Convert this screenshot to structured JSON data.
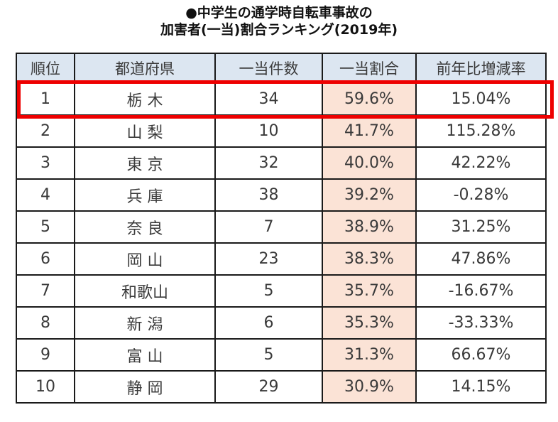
{
  "title": {
    "line1": "●中学生の通学時自転車事故の",
    "line2": "加害者(一当)割合ランキング(2019年)"
  },
  "table": {
    "headers": [
      "順位",
      "都道府県",
      "一当件数",
      "一当割合",
      "前年比増減率"
    ],
    "rows": [
      {
        "rank": "1",
        "prefecture": "栃 木",
        "count": "34",
        "ratio": "59.6%",
        "yoy": "15.04%"
      },
      {
        "rank": "2",
        "prefecture": "山 梨",
        "count": "10",
        "ratio": "41.7%",
        "yoy": "115.28%"
      },
      {
        "rank": "3",
        "prefecture": "東 京",
        "count": "32",
        "ratio": "40.0%",
        "yoy": "42.22%"
      },
      {
        "rank": "4",
        "prefecture": "兵 庫",
        "count": "38",
        "ratio": "39.2%",
        "yoy": "-0.28%"
      },
      {
        "rank": "5",
        "prefecture": "奈 良",
        "count": "7",
        "ratio": "38.9%",
        "yoy": "31.25%"
      },
      {
        "rank": "6",
        "prefecture": "岡 山",
        "count": "23",
        "ratio": "38.3%",
        "yoy": "47.86%"
      },
      {
        "rank": "7",
        "prefecture": "和歌山",
        "count": "5",
        "ratio": "35.7%",
        "yoy": "-16.67%"
      },
      {
        "rank": "8",
        "prefecture": "新 潟",
        "count": "6",
        "ratio": "35.3%",
        "yoy": "-33.33%"
      },
      {
        "rank": "9",
        "prefecture": "富 山",
        "count": "5",
        "ratio": "31.3%",
        "yoy": "66.67%"
      },
      {
        "rank": "10",
        "prefecture": "静 岡",
        "count": "29",
        "ratio": "30.9%",
        "yoy": "14.15%"
      }
    ]
  },
  "highlight": {
    "row_index": 0,
    "color": "#ee0000"
  },
  "colors": {
    "header_bg": "#dce6f1",
    "ratio_bg": "#fbe3d6",
    "border": "#1a1a1a"
  }
}
